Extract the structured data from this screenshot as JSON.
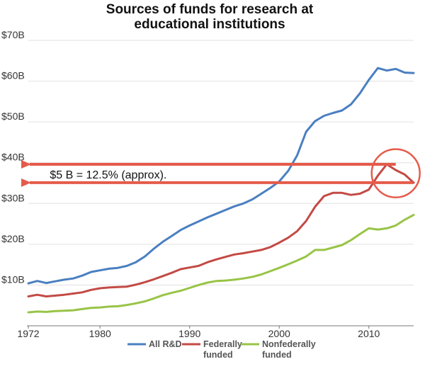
{
  "chart_data": {
    "type": "line",
    "title_lines": [
      "Sources of funds for research at",
      "educational institutions"
    ],
    "xlabel": "",
    "ylabel": "",
    "xlim": [
      1972,
      2015
    ],
    "ylim": [
      0,
      70
    ],
    "x_ticks": [
      {
        "value": 1972,
        "label": "1972"
      },
      {
        "value": 1980,
        "label": "1980"
      },
      {
        "value": 1990,
        "label": "1990"
      },
      {
        "value": 2000,
        "label": "2000"
      },
      {
        "value": 2010,
        "label": "2010"
      }
    ],
    "y_ticks": [
      {
        "value": 10,
        "label": "$10B"
      },
      {
        "value": 20,
        "label": "$20B"
      },
      {
        "value": 30,
        "label": "$30B"
      },
      {
        "value": 40,
        "label": "$40B"
      },
      {
        "value": 50,
        "label": "$50B"
      },
      {
        "value": 60,
        "label": "$60B"
      },
      {
        "value": 70,
        "label": "$70B"
      }
    ],
    "grid": "horizontal",
    "legend_position": "bottom",
    "x": [
      1972,
      1973,
      1974,
      1975,
      1976,
      1977,
      1978,
      1979,
      1980,
      1981,
      1982,
      1983,
      1984,
      1985,
      1986,
      1987,
      1988,
      1989,
      1990,
      1991,
      1992,
      1993,
      1994,
      1995,
      1996,
      1997,
      1998,
      1999,
      2000,
      2001,
      2002,
      2003,
      2004,
      2005,
      2006,
      2007,
      2008,
      2009,
      2010,
      2011,
      2012,
      2013,
      2014,
      2015
    ],
    "series": [
      {
        "name": "All R&D",
        "color": "#4a7fc1",
        "values": [
          10.4,
          11.0,
          10.5,
          10.9,
          11.3,
          11.6,
          12.3,
          13.2,
          13.6,
          14.0,
          14.2,
          14.7,
          15.6,
          17.0,
          18.9,
          20.6,
          22.0,
          23.5,
          24.6,
          25.6,
          26.6,
          27.5,
          28.4,
          29.3,
          30.0,
          31.0,
          32.4,
          33.8,
          35.4,
          38.0,
          41.8,
          47.6,
          50.2,
          51.5,
          52.2,
          52.8,
          54.3,
          57.0,
          60.3,
          63.2,
          62.6,
          63.0,
          62.1,
          62.0
        ]
      },
      {
        "name": "Federally funded",
        "color": "#c34a44",
        "values": [
          7.2,
          7.6,
          7.2,
          7.4,
          7.6,
          7.9,
          8.2,
          8.8,
          9.2,
          9.4,
          9.5,
          9.6,
          10.1,
          10.7,
          11.4,
          12.2,
          13.0,
          13.9,
          14.3,
          14.7,
          15.6,
          16.3,
          16.9,
          17.5,
          17.8,
          18.2,
          18.6,
          19.3,
          20.4,
          21.6,
          23.2,
          25.7,
          29.2,
          31.8,
          32.6,
          32.6,
          32.1,
          32.4,
          33.4,
          36.8,
          39.6,
          38.2,
          37.1,
          35.1
        ]
      },
      {
        "name": "Nonfederally funded",
        "color": "#98c446",
        "values": [
          3.3,
          3.5,
          3.4,
          3.6,
          3.7,
          3.8,
          4.1,
          4.4,
          4.5,
          4.7,
          4.8,
          5.1,
          5.5,
          6.0,
          6.7,
          7.5,
          8.1,
          8.6,
          9.3,
          10.0,
          10.6,
          11.0,
          11.1,
          11.3,
          11.6,
          12.0,
          12.6,
          13.4,
          14.2,
          15.1,
          16.0,
          17.0,
          18.6,
          18.6,
          19.2,
          19.8,
          21.0,
          22.5,
          23.9,
          23.6,
          23.9,
          24.6,
          26.0,
          27.2
        ]
      }
    ],
    "annotations": [
      {
        "id": "arrow-upper",
        "type": "arrow",
        "color": "#e55b4a",
        "from": {
          "x": 2013,
          "y": 39.6
        },
        "to": {
          "x": 1972,
          "y": 39.6
        }
      },
      {
        "id": "arrow-lower",
        "type": "arrow",
        "color": "#e55b4a",
        "from": {
          "x": 2015,
          "y": 35.1
        },
        "to": {
          "x": 1972,
          "y": 35.1
        }
      },
      {
        "id": "highlight-circle",
        "type": "circle",
        "color": "#e55b4a",
        "center": {
          "x": 2013,
          "y": 37.4
        }
      },
      {
        "id": "annotation-text",
        "type": "text",
        "text": "$5 B = 12.5% (approx).",
        "position": {
          "x": 1974.4,
          "y": 37.2
        }
      }
    ]
  }
}
